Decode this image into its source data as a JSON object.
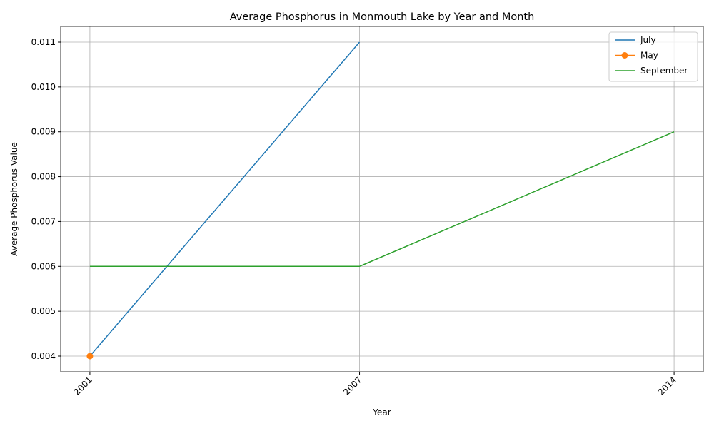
{
  "chart_data": {
    "type": "line",
    "title": "Average Phosphorus in Monmouth Lake by Year and Month",
    "xlabel": "Year",
    "ylabel": "Average Phosphorus Value",
    "x": [
      2001,
      2007,
      2014
    ],
    "series": [
      {
        "name": "July",
        "color": "#1f77b4",
        "marker": false,
        "values": [
          0.004,
          0.011,
          null
        ]
      },
      {
        "name": "May",
        "color": "#ff7f0e",
        "marker": true,
        "values": [
          0.004,
          null,
          null
        ]
      },
      {
        "name": "September",
        "color": "#2ca02c",
        "marker": false,
        "values": [
          0.006,
          0.006,
          0.009
        ]
      }
    ],
    "xlim": [
      2000.35,
      2014.65
    ],
    "xticks": [
      2001,
      2007,
      2014
    ],
    "ylim": [
      0.00365,
      0.01135
    ],
    "yticks": [
      0.004,
      0.005,
      0.006,
      0.007,
      0.008,
      0.009,
      {
        "value": 0.01,
        "label": "0.010"
      },
      0.011
    ],
    "grid": true,
    "legend": "upper right"
  }
}
